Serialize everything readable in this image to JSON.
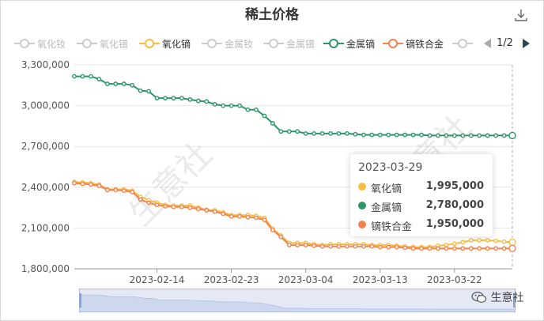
{
  "title": "稀土价格",
  "icons": {
    "download": "download-icon",
    "watermark": "wechat-icon"
  },
  "legend": [
    {
      "name": "氧化钕",
      "color": "#cccccc",
      "active": false
    },
    {
      "name": "氧化镨",
      "color": "#cccccc",
      "active": false
    },
    {
      "name": "氧化镝",
      "color": "#f5bd42",
      "active": true
    },
    {
      "name": "金属钕",
      "color": "#cccccc",
      "active": false
    },
    {
      "name": "金属镨",
      "color": "#cccccc",
      "active": false
    },
    {
      "name": "金属镝",
      "color": "#2e9666",
      "active": true
    },
    {
      "name": "镝铁合金",
      "color": "#f6824e",
      "active": true
    },
    {
      "name": "",
      "color": "#cccccc",
      "active": false
    }
  ],
  "pager": "1/2",
  "tooltip": {
    "date": "2023-03-29",
    "rows": [
      {
        "name": "氧化镝",
        "value": "1,995,000",
        "color": "#f5bd42"
      },
      {
        "name": "金属镝",
        "value": "2,780,000",
        "color": "#2e9666"
      },
      {
        "name": "镝铁合金",
        "value": "1,950,000",
        "color": "#f6824e"
      }
    ]
  },
  "watermark": {
    "text": "生意社",
    "chart_text": "生意社"
  },
  "chart_data": {
    "type": "line",
    "title": "稀土价格",
    "xlabel": "",
    "ylabel": "",
    "ylim": [
      1800000,
      3300000
    ],
    "yticks": [
      "1,800,000",
      "2,100,000",
      "2,400,000",
      "2,700,000",
      "3,000,000",
      "3,300,000"
    ],
    "ytick_values": [
      1800000,
      2100000,
      2400000,
      2700000,
      3000000,
      3300000
    ],
    "xticks": [
      "2023-02-14",
      "2023-02-23",
      "2023-03-04",
      "2023-03-13",
      "2023-03-22"
    ],
    "xtick_index": [
      10,
      19,
      28,
      37,
      46
    ],
    "x": [
      "2023-02-04",
      "2023-02-05",
      "2023-02-06",
      "2023-02-07",
      "2023-02-08",
      "2023-02-09",
      "2023-02-10",
      "2023-02-11",
      "2023-02-12",
      "2023-02-13",
      "2023-02-14",
      "2023-02-15",
      "2023-02-16",
      "2023-02-17",
      "2023-02-18",
      "2023-02-19",
      "2023-02-20",
      "2023-02-21",
      "2023-02-22",
      "2023-02-23",
      "2023-02-24",
      "2023-02-25",
      "2023-02-26",
      "2023-02-27",
      "2023-02-28",
      "2023-03-01",
      "2023-03-02",
      "2023-03-03",
      "2023-03-04",
      "2023-03-05",
      "2023-03-06",
      "2023-03-07",
      "2023-03-08",
      "2023-03-09",
      "2023-03-10",
      "2023-03-11",
      "2023-03-12",
      "2023-03-13",
      "2023-03-14",
      "2023-03-15",
      "2023-03-16",
      "2023-03-17",
      "2023-03-18",
      "2023-03-19",
      "2023-03-20",
      "2023-03-21",
      "2023-03-22",
      "2023-03-23",
      "2023-03-24",
      "2023-03-25",
      "2023-03-26",
      "2023-03-27",
      "2023-03-28",
      "2023-03-29"
    ],
    "series": [
      {
        "name": "氧化镝",
        "color": "#f5bd42",
        "values": [
          2440000,
          2435000,
          2430000,
          2420000,
          2385000,
          2385000,
          2385000,
          2375000,
          2330000,
          2305000,
          2285000,
          2270000,
          2265000,
          2265000,
          2265000,
          2250000,
          2235000,
          2230000,
          2215000,
          2195000,
          2195000,
          2195000,
          2190000,
          2175000,
          2095000,
          2045000,
          1990000,
          1990000,
          1990000,
          1980000,
          1975000,
          1980000,
          1980000,
          1980000,
          1980000,
          1980000,
          1975000,
          1975000,
          1975000,
          1970000,
          1965000,
          1960000,
          1960000,
          1960000,
          1970000,
          1975000,
          1985000,
          1995000,
          2010000,
          2010000,
          2010000,
          2005000,
          2000000,
          1995000
        ]
      },
      {
        "name": "金属镝",
        "color": "#2e9666",
        "values": [
          3215000,
          3215000,
          3215000,
          3195000,
          3160000,
          3160000,
          3160000,
          3150000,
          3110000,
          3105000,
          3055000,
          3055000,
          3055000,
          3055000,
          3045000,
          3035000,
          3030000,
          3010000,
          3000000,
          3000000,
          3000000,
          2970000,
          2970000,
          2925000,
          2870000,
          2810000,
          2810000,
          2810000,
          2795000,
          2795000,
          2795000,
          2795000,
          2795000,
          2795000,
          2790000,
          2785000,
          2785000,
          2785000,
          2785000,
          2785000,
          2785000,
          2785000,
          2785000,
          2780000,
          2780000,
          2780000,
          2780000,
          2780000,
          2780000,
          2780000,
          2780000,
          2780000,
          2780000,
          2780000
        ]
      },
      {
        "name": "镝铁合金",
        "color": "#f6824e",
        "values": [
          2430000,
          2425000,
          2420000,
          2410000,
          2380000,
          2380000,
          2375000,
          2365000,
          2310000,
          2285000,
          2270000,
          2260000,
          2255000,
          2255000,
          2250000,
          2240000,
          2230000,
          2220000,
          2205000,
          2185000,
          2185000,
          2180000,
          2175000,
          2160000,
          2085000,
          2035000,
          1975000,
          1975000,
          1975000,
          1970000,
          1965000,
          1965000,
          1965000,
          1965000,
          1965000,
          1965000,
          1965000,
          1960000,
          1960000,
          1960000,
          1955000,
          1950000,
          1950000,
          1950000,
          1950000,
          1950000,
          1950000,
          1950000,
          1950000,
          1950000,
          1950000,
          1950000,
          1950000,
          1950000
        ]
      }
    ],
    "grid": true,
    "legend_position": "top",
    "tooltip_index": 53
  }
}
